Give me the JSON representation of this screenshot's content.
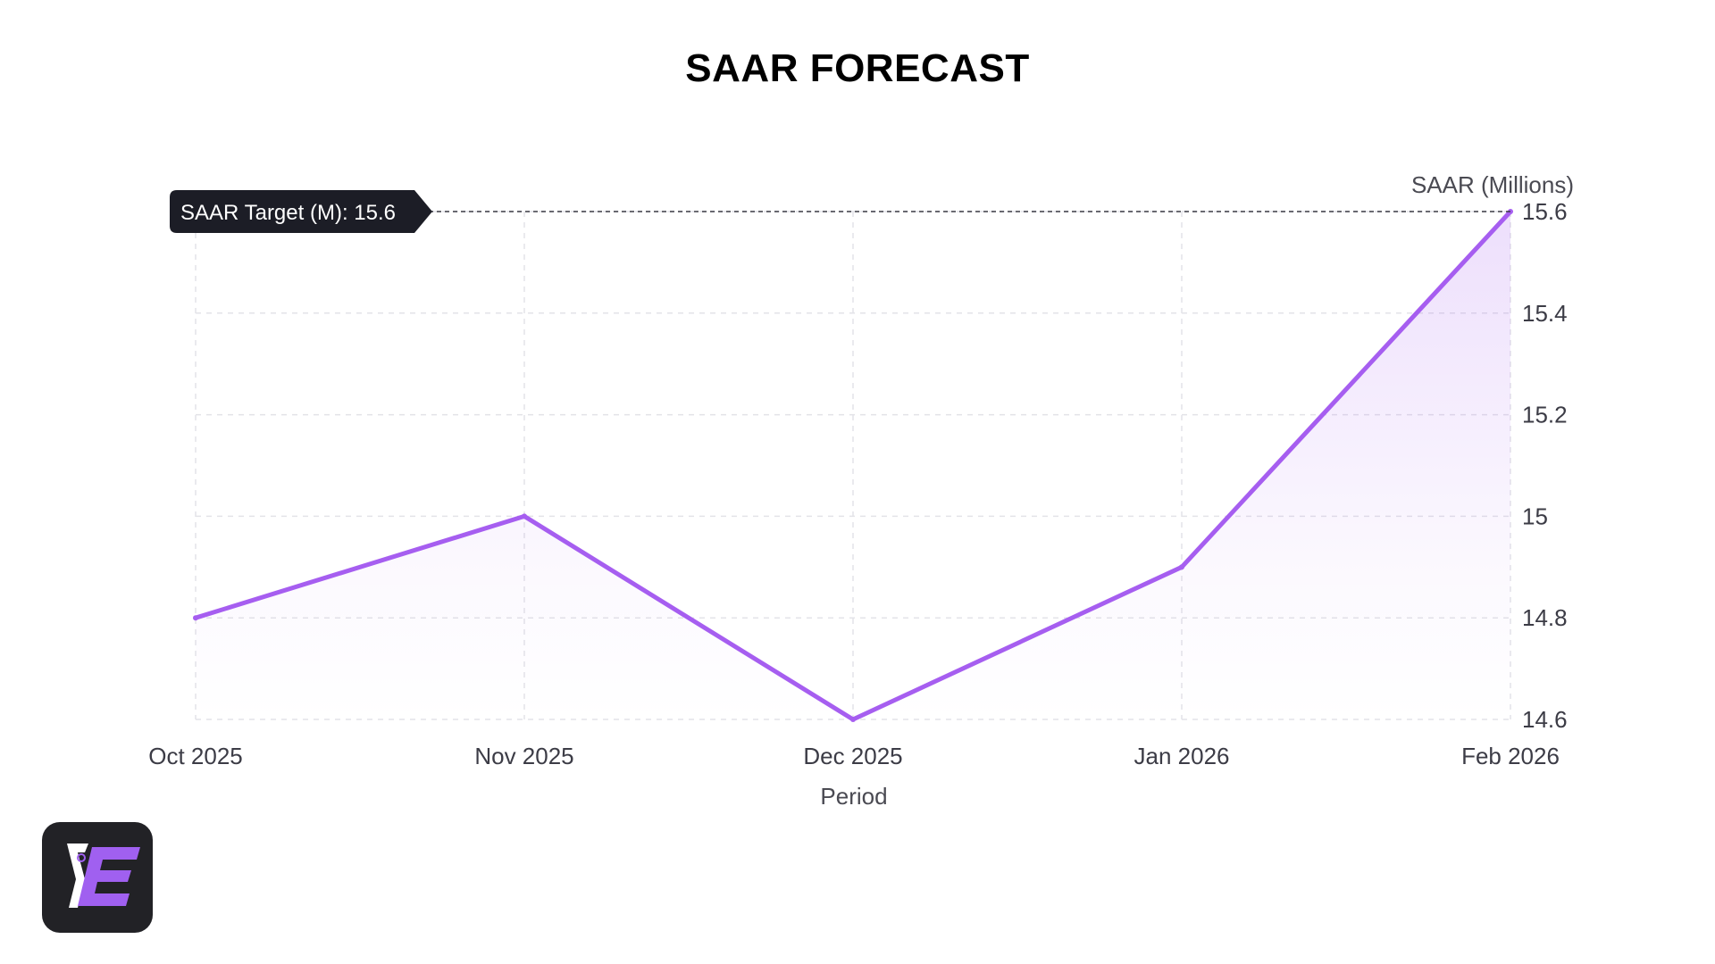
{
  "chart_data": {
    "type": "area",
    "title": "SAAR FORECAST",
    "xlabel": "Period",
    "ylabel": "SAAR (Millions)",
    "categories": [
      "Oct 2025",
      "Nov 2025",
      "Dec 2025",
      "Jan 2026",
      "Feb 2026"
    ],
    "series": [
      {
        "name": "SAAR (Millions)",
        "values": [
          14.8,
          15.0,
          14.6,
          14.9,
          15.6
        ]
      }
    ],
    "ylim": [
      14.6,
      15.6
    ],
    "yticks": [
      14.6,
      14.8,
      15,
      15.2,
      15.4,
      15.6
    ],
    "ytick_labels": [
      "14.6",
      "14.8",
      "15",
      "15.2",
      "15.4",
      "15.6"
    ],
    "grid": true,
    "y_axis_side": "right",
    "reference_line": {
      "label": "SAAR Target (M): 15.6",
      "value": 15.6,
      "style": "dashed"
    },
    "colors": {
      "line": "#a65ef0",
      "fill": "#a65ef0",
      "grid": "#e3e3e8",
      "reference": "#3a3a44",
      "badge": "#1c1d26"
    }
  },
  "logo": {
    "name": "E brand logo",
    "colors": {
      "background": "#222226",
      "accent": "#a060f0",
      "mark": "#ffffff"
    }
  }
}
